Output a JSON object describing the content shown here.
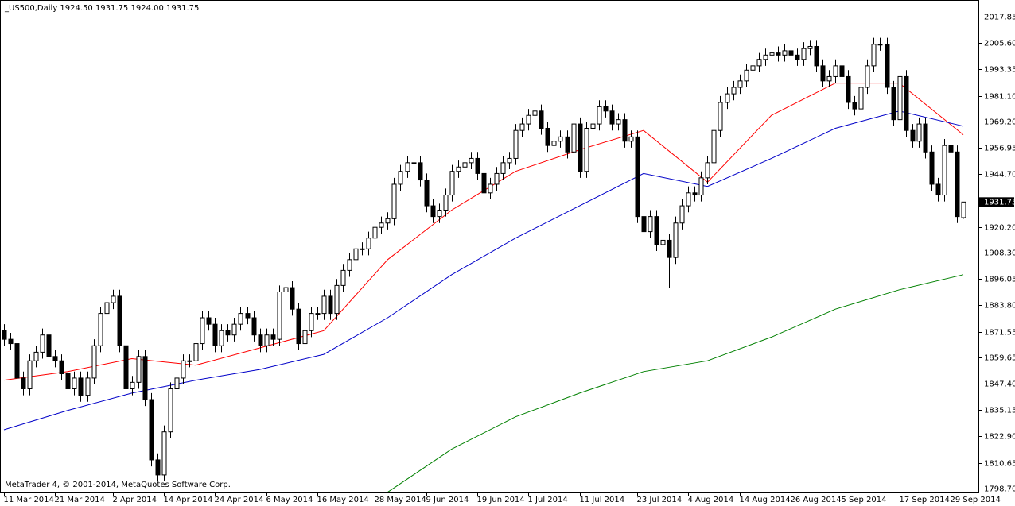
{
  "chart_data": {
    "type": "candlestick",
    "header": "_US500,Daily  1924.50 1931.75 1924.00 1931.75",
    "footer": "MetaTrader 4, © 2001-2014, MetaQuotes Software Corp.",
    "categories": [
      "11 Mar 2014",
      null,
      null,
      null,
      null,
      null,
      null,
      null,
      "21 Mar 2014",
      null,
      null,
      null,
      null,
      null,
      null,
      null,
      null,
      "2 Apr 2014",
      null,
      null,
      null,
      null,
      null,
      null,
      null,
      "14 Apr 2014",
      null,
      null,
      null,
      null,
      null,
      null,
      null,
      "24 Apr 2014",
      null,
      null,
      null,
      null,
      null,
      null,
      null,
      "6 May 2014",
      null,
      null,
      null,
      null,
      null,
      null,
      null,
      "16 May 2014",
      null,
      null,
      null,
      null,
      null,
      null,
      null,
      null,
      "28 May 2014",
      null,
      null,
      null,
      null,
      null,
      null,
      null,
      "9 Jun 2014",
      null,
      null,
      null,
      null,
      null,
      null,
      null,
      "19 Jun 2014",
      null,
      null,
      null,
      null,
      null,
      null,
      null,
      "1 Jul 2014",
      null,
      null,
      null,
      null,
      null,
      null,
      null,
      "11 Jul 2014",
      null,
      null,
      null,
      null,
      null,
      null,
      null,
      null,
      "23 Jul 2014",
      null,
      null,
      null,
      null,
      null,
      null,
      null,
      "4 Aug 2014",
      null,
      null,
      null,
      null,
      null,
      null,
      null,
      "14 Aug 2014",
      null,
      null,
      null,
      null,
      null,
      null,
      null,
      "26 Aug 2014",
      null,
      null,
      null,
      null,
      null,
      null,
      null,
      "5 Sep 2014",
      null,
      null,
      null,
      null,
      null,
      null,
      null,
      null,
      "17 Sep 2014",
      null,
      null,
      null,
      null,
      null,
      null,
      null,
      "29 Sep 2014",
      null,
      null
    ],
    "open": [
      1872,
      1868,
      1866,
      1850,
      1845,
      1858,
      1862,
      1870,
      1860,
      1858,
      1852,
      1845,
      1850,
      1842,
      1850,
      1865,
      1880,
      1885,
      1888,
      1865,
      1845,
      1848,
      1860,
      1840,
      1812,
      1805,
      1825,
      1845,
      1850,
      1858,
      1858,
      1866,
      1878,
      1875,
      1865,
      1872,
      1870,
      1875,
      1880,
      1878,
      1870,
      1865,
      1870,
      1868,
      1890,
      1892,
      1882,
      1866,
      1872,
      1880,
      1880,
      1888,
      1880,
      1893,
      1900,
      1905,
      1910,
      1910,
      1915,
      1920,
      1922,
      1924,
      1940,
      1946,
      1950,
      1950,
      1942,
      1930,
      1925,
      1928,
      1935,
      1946,
      1948,
      1950,
      1952,
      1945,
      1936,
      1940,
      1945,
      1950,
      1952,
      1965,
      1968,
      1972,
      1974,
      1966,
      1958,
      1960,
      1962,
      1955,
      1968,
      1946,
      1966,
      1968,
      1976,
      1974,
      1968,
      1970,
      1960,
      1962,
      1925,
      1918,
      1925,
      1912,
      1914,
      1906,
      1922,
      1930,
      1936,
      1935,
      1943,
      1950,
      1965,
      1978,
      1982,
      1985,
      1988,
      1993,
      1995,
      1998,
      2000,
      2001,
      2000,
      2002,
      2000,
      1998,
      2003,
      2004,
      1995,
      1988,
      1990,
      1995,
      1990,
      1978,
      1975,
      1985,
      1995,
      2005,
      2005,
      1985,
      1970,
      1990,
      1965,
      1960,
      1968,
      1955,
      1940,
      1935,
      1958,
      1955,
      1924.5
    ],
    "high": [
      1875,
      1871,
      1869,
      1853,
      1861,
      1865,
      1873,
      1873,
      1863,
      1861,
      1855,
      1853,
      1853,
      1853,
      1868,
      1883,
      1888,
      1891,
      1891,
      1868,
      1851,
      1863,
      1863,
      1843,
      1815,
      1828,
      1848,
      1853,
      1861,
      1861,
      1869,
      1881,
      1881,
      1878,
      1875,
      1875,
      1878,
      1883,
      1883,
      1881,
      1873,
      1873,
      1873,
      1893,
      1895,
      1895,
      1885,
      1875,
      1883,
      1883,
      1891,
      1891,
      1896,
      1903,
      1908,
      1913,
      1913,
      1918,
      1923,
      1925,
      1927,
      1943,
      1949,
      1953,
      1953,
      1953,
      1945,
      1933,
      1931,
      1938,
      1949,
      1951,
      1953,
      1955,
      1955,
      1948,
      1943,
      1948,
      1953,
      1955,
      1968,
      1971,
      1975,
      1977,
      1977,
      1969,
      1963,
      1965,
      1965,
      1971,
      1971,
      1969,
      1971,
      1979,
      1979,
      1977,
      1973,
      1973,
      1965,
      1965,
      1928,
      1928,
      1928,
      1917,
      1917,
      1925,
      1933,
      1939,
      1939,
      1946,
      1953,
      1968,
      1981,
      1985,
      1988,
      1991,
      1996,
      1998,
      2001,
      2003,
      2004,
      2004,
      2005,
      2005,
      2003,
      2006,
      2007,
      2007,
      1998,
      1993,
      1998,
      1998,
      1993,
      1981,
      1988,
      1998,
      2008,
      2008,
      2008,
      1988,
      1993,
      1993,
      1968,
      1971,
      1971,
      1958,
      1943,
      1961,
      1961,
      1958,
      1931.75
    ],
    "low": [
      1865,
      1863,
      1847,
      1842,
      1842,
      1855,
      1859,
      1857,
      1855,
      1849,
      1842,
      1842,
      1839,
      1839,
      1847,
      1862,
      1877,
      1882,
      1862,
      1842,
      1842,
      1845,
      1837,
      1809,
      1802,
      1802,
      1822,
      1842,
      1847,
      1855,
      1855,
      1863,
      1872,
      1862,
      1862,
      1867,
      1867,
      1872,
      1875,
      1867,
      1862,
      1862,
      1865,
      1865,
      1887,
      1879,
      1863,
      1863,
      1869,
      1877,
      1877,
      1877,
      1877,
      1890,
      1897,
      1902,
      1907,
      1907,
      1912,
      1917,
      1919,
      1921,
      1937,
      1943,
      1947,
      1939,
      1927,
      1922,
      1922,
      1925,
      1932,
      1943,
      1945,
      1947,
      1942,
      1933,
      1933,
      1937,
      1942,
      1947,
      1949,
      1962,
      1965,
      1969,
      1963,
      1955,
      1955,
      1957,
      1952,
      1952,
      1943,
      1943,
      1963,
      1965,
      1971,
      1965,
      1965,
      1957,
      1957,
      1922,
      1915,
      1915,
      1909,
      1909,
      1892,
      1903,
      1919,
      1927,
      1932,
      1932,
      1940,
      1947,
      1962,
      1975,
      1979,
      1982,
      1985,
      1990,
      1992,
      1995,
      1997,
      1997,
      1997,
      1997,
      1995,
      1995,
      2000,
      1992,
      1985,
      1985,
      1987,
      1987,
      1975,
      1972,
      1972,
      1982,
      1992,
      2002,
      1982,
      1967,
      1967,
      1962,
      1957,
      1957,
      1952,
      1937,
      1932,
      1932,
      1952,
      1922,
      1924
    ],
    "close": [
      1868,
      1866,
      1850,
      1845,
      1858,
      1862,
      1870,
      1860,
      1858,
      1852,
      1845,
      1850,
      1842,
      1850,
      1865,
      1880,
      1885,
      1888,
      1865,
      1845,
      1848,
      1860,
      1840,
      1812,
      1805,
      1825,
      1845,
      1850,
      1858,
      1858,
      1866,
      1878,
      1875,
      1865,
      1872,
      1870,
      1875,
      1880,
      1878,
      1870,
      1865,
      1870,
      1868,
      1890,
      1892,
      1882,
      1866,
      1872,
      1880,
      1880,
      1888,
      1880,
      1893,
      1900,
      1905,
      1910,
      1910,
      1915,
      1920,
      1922,
      1924,
      1940,
      1946,
      1950,
      1950,
      1942,
      1930,
      1925,
      1928,
      1935,
      1946,
      1948,
      1950,
      1952,
      1945,
      1936,
      1940,
      1945,
      1950,
      1952,
      1965,
      1968,
      1972,
      1974,
      1966,
      1958,
      1960,
      1962,
      1955,
      1968,
      1946,
      1966,
      1968,
      1976,
      1974,
      1968,
      1970,
      1960,
      1962,
      1925,
      1918,
      1925,
      1912,
      1914,
      1906,
      1922,
      1930,
      1936,
      1935,
      1943,
      1950,
      1965,
      1978,
      1982,
      1985,
      1988,
      1993,
      1995,
      1998,
      2000,
      2001,
      2000,
      2002,
      2000,
      1998,
      2003,
      2004,
      1995,
      1988,
      1990,
      1995,
      1990,
      1978,
      1975,
      1985,
      1995,
      2005,
      2005,
      1985,
      1970,
      1990,
      1965,
      1960,
      1968,
      1955,
      1940,
      1935,
      1958,
      1955,
      1925,
      1931.75
    ],
    "lines": [
      {
        "color": "#ff0000",
        "x": [
          0,
          10,
          20,
          30,
          40,
          50,
          60,
          70,
          80,
          90,
          100,
          110,
          120,
          130,
          140,
          150
        ],
        "values": [
          1849,
          1853,
          1859,
          1856,
          1864,
          1872,
          1905,
          1928,
          1946,
          1956,
          1965,
          1941,
          1972,
          1987,
          1987,
          1963
        ]
      },
      {
        "color": "#0000c8",
        "x": [
          0,
          10,
          20,
          30,
          40,
          50,
          60,
          70,
          80,
          90,
          100,
          110,
          120,
          130,
          140,
          150
        ],
        "values": [
          1826,
          1835,
          1843,
          1849,
          1854,
          1861,
          1878,
          1898,
          1915,
          1930,
          1945,
          1939,
          1952,
          1966,
          1974,
          1967
        ]
      },
      {
        "color": "#008000",
        "x": [
          60,
          70,
          80,
          90,
          100,
          110,
          120,
          130,
          140,
          150
        ],
        "values": [
          1797,
          1817,
          1832,
          1843,
          1853,
          1858,
          1869,
          1882,
          1891,
          1898
        ]
      }
    ],
    "last_price": 1931.75,
    "ylim": [
      1796.85,
      2024.1
    ],
    "yticks": [
      2017.85,
      {
        "value": 2005.6,
        "label": "2005.60"
      },
      1993.35,
      {
        "value": 1981.1,
        "label": "1981.10"
      },
      {
        "value": 1969.2,
        "label": "1969.20"
      },
      1956.95,
      {
        "value": 1944.7,
        "label": "1944.70"
      },
      {
        "value": 1920.2,
        "label": "1920.20"
      },
      {
        "value": 1908.3,
        "label": "1908.30"
      },
      1896.05,
      {
        "value": 1883.8,
        "label": "1883.80"
      },
      1871.55,
      1859.65,
      {
        "value": 1847.4,
        "label": "1847.40"
      },
      1835.15,
      {
        "value": 1822.9,
        "label": "1822.90"
      },
      1810.65,
      {
        "value": 1798.7,
        "label": "1798.70"
      }
    ]
  }
}
